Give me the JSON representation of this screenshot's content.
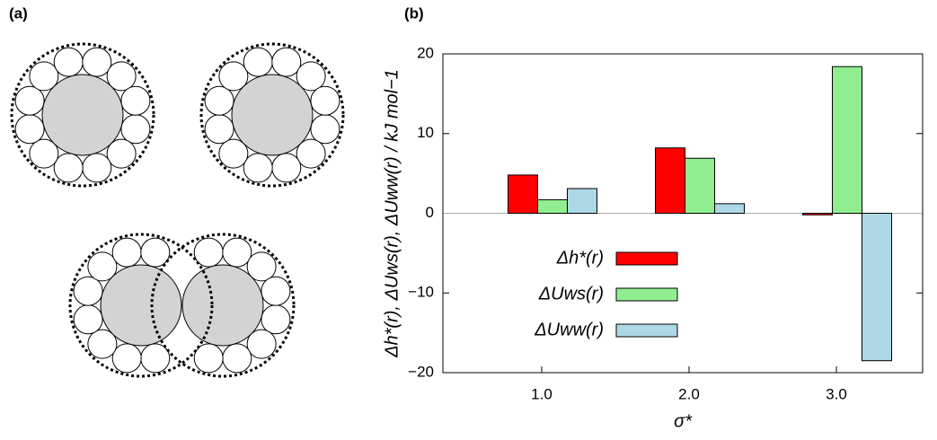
{
  "panel_labels": [
    "(a)",
    "(b)"
  ],
  "chart_data": {
    "type": "bar",
    "categories": [
      "1.0",
      "2.0",
      "3.0"
    ],
    "series": [
      {
        "name": "Δh*(r)",
        "color": "#ff0000",
        "values": [
          4.8,
          8.2,
          -0.2
        ]
      },
      {
        "name": "ΔUws(r)",
        "color": "#90ee90",
        "values": [
          1.7,
          6.9,
          18.4
        ]
      },
      {
        "name": "ΔUww(r)",
        "color": "#add8e6",
        "values": [
          3.1,
          1.2,
          -18.5
        ]
      }
    ],
    "x_label": "σ*",
    "y_label": "Δh*(r), ΔUws(r), ΔUww(r) / kJ mol−1",
    "ylim": [
      -20,
      20
    ],
    "yticks": [
      {
        "value": -20,
        "label": "−20"
      },
      {
        "value": -10,
        "label": "−10"
      },
      0,
      10,
      20
    ],
    "zero_line": true
  }
}
